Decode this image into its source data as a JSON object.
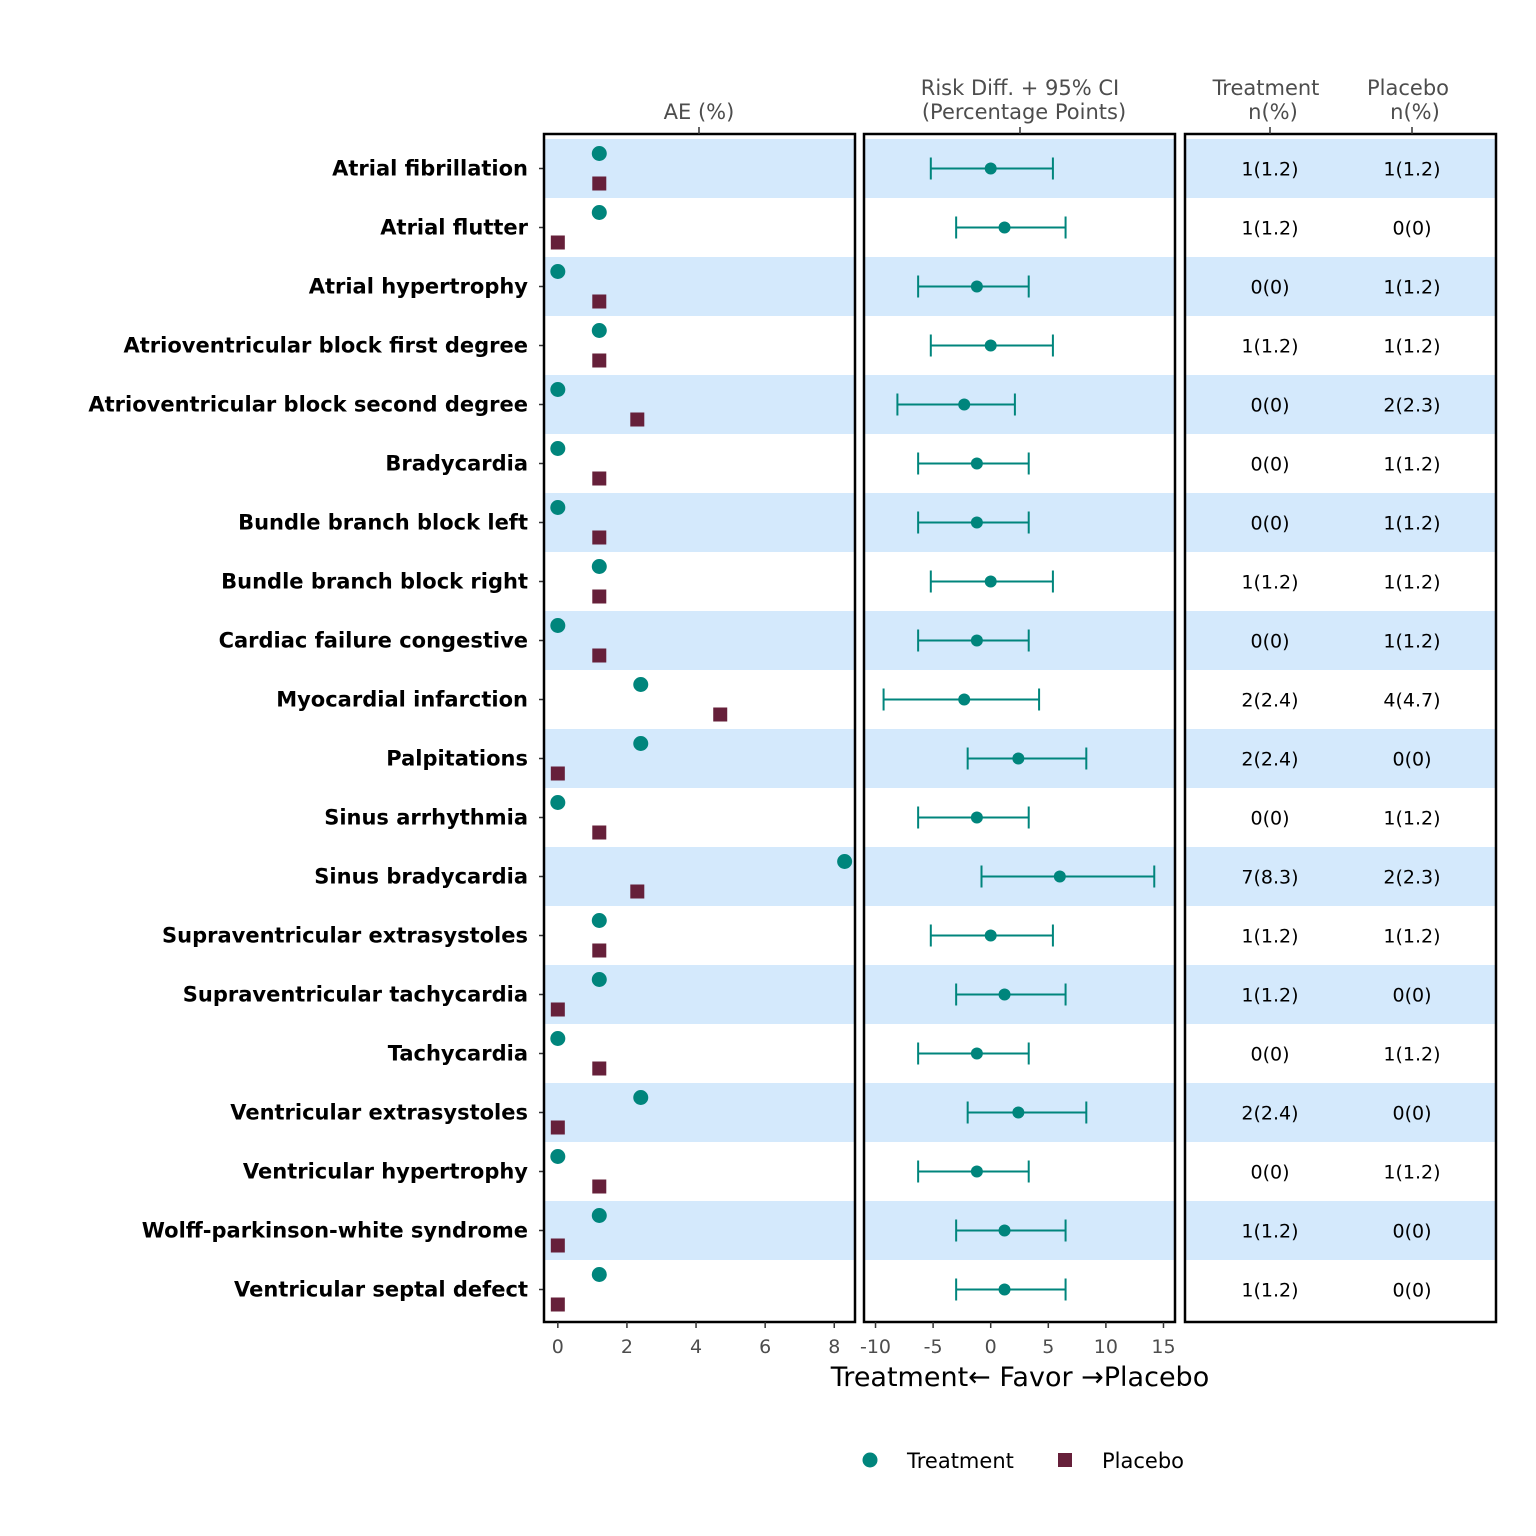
{
  "chart_data": {
    "type": "forest",
    "panels": {
      "ae": {
        "title": "AE (%)",
        "xlim": [
          -0.4,
          8.6
        ],
        "ticks": [
          0,
          2,
          4,
          6,
          8
        ]
      },
      "risk": {
        "title_line1": "Risk Diff. + 95% CI",
        "title_line2": "(Percentage Points)",
        "xlim": [
          -11,
          16
        ],
        "ticks": [
          -10,
          -5,
          0,
          5,
          10,
          15
        ],
        "tick_labels": [
          "-10",
          "-5",
          "0",
          "5",
          "10",
          "15"
        ]
      },
      "table": {
        "col1_line1": "Treatment",
        "col1_line2": "n(%)",
        "col2_line1": "Placebo",
        "col2_line2": "n(%)"
      }
    },
    "xlabel": "Treatment← Favor →Placebo",
    "legend": {
      "position": "bottom",
      "treatment": "Treatment",
      "placebo": "Placebo"
    },
    "colors": {
      "treatment": "#00857C",
      "placebo": "#66203A",
      "band": "#D4E9FC",
      "frame": "#000000"
    },
    "rows": [
      {
        "label": "Atrial fibrillation",
        "trt_pct": 1.2,
        "pbo_pct": 1.2,
        "rd": 0.0,
        "lo": -5.2,
        "hi": 5.4,
        "trt_n": "1(1.2)",
        "pbo_n": "1(1.2)"
      },
      {
        "label": "Atrial flutter",
        "trt_pct": 1.2,
        "pbo_pct": 0.0,
        "rd": 1.2,
        "lo": -3.0,
        "hi": 6.5,
        "trt_n": "1(1.2)",
        "pbo_n": "0(0)"
      },
      {
        "label": "Atrial hypertrophy",
        "trt_pct": 0.0,
        "pbo_pct": 1.2,
        "rd": -1.2,
        "lo": -6.3,
        "hi": 3.3,
        "trt_n": "0(0)",
        "pbo_n": "1(1.2)"
      },
      {
        "label": "Atrioventricular block first degree",
        "trt_pct": 1.2,
        "pbo_pct": 1.2,
        "rd": 0.0,
        "lo": -5.2,
        "hi": 5.4,
        "trt_n": "1(1.2)",
        "pbo_n": "1(1.2)"
      },
      {
        "label": "Atrioventricular block second degree",
        "trt_pct": 0.0,
        "pbo_pct": 2.3,
        "rd": -2.3,
        "lo": -8.1,
        "hi": 2.1,
        "trt_n": "0(0)",
        "pbo_n": "2(2.3)"
      },
      {
        "label": "Bradycardia",
        "trt_pct": 0.0,
        "pbo_pct": 1.2,
        "rd": -1.2,
        "lo": -6.3,
        "hi": 3.3,
        "trt_n": "0(0)",
        "pbo_n": "1(1.2)"
      },
      {
        "label": "Bundle branch block left",
        "trt_pct": 0.0,
        "pbo_pct": 1.2,
        "rd": -1.2,
        "lo": -6.3,
        "hi": 3.3,
        "trt_n": "0(0)",
        "pbo_n": "1(1.2)"
      },
      {
        "label": "Bundle branch block right",
        "trt_pct": 1.2,
        "pbo_pct": 1.2,
        "rd": 0.0,
        "lo": -5.2,
        "hi": 5.4,
        "trt_n": "1(1.2)",
        "pbo_n": "1(1.2)"
      },
      {
        "label": "Cardiac failure congestive",
        "trt_pct": 0.0,
        "pbo_pct": 1.2,
        "rd": -1.2,
        "lo": -6.3,
        "hi": 3.3,
        "trt_n": "0(0)",
        "pbo_n": "1(1.2)"
      },
      {
        "label": "Myocardial infarction",
        "trt_pct": 2.4,
        "pbo_pct": 4.7,
        "rd": -2.3,
        "lo": -9.3,
        "hi": 4.2,
        "trt_n": "2(2.4)",
        "pbo_n": "4(4.7)"
      },
      {
        "label": "Palpitations",
        "trt_pct": 2.4,
        "pbo_pct": 0.0,
        "rd": 2.4,
        "lo": -2.0,
        "hi": 8.3,
        "trt_n": "2(2.4)",
        "pbo_n": "0(0)"
      },
      {
        "label": "Sinus arrhythmia",
        "trt_pct": 0.0,
        "pbo_pct": 1.2,
        "rd": -1.2,
        "lo": -6.3,
        "hi": 3.3,
        "trt_n": "0(0)",
        "pbo_n": "1(1.2)"
      },
      {
        "label": "Sinus bradycardia",
        "trt_pct": 8.3,
        "pbo_pct": 2.3,
        "rd": 6.0,
        "lo": -0.8,
        "hi": 14.2,
        "trt_n": "7(8.3)",
        "pbo_n": "2(2.3)"
      },
      {
        "label": "Supraventricular extrasystoles",
        "trt_pct": 1.2,
        "pbo_pct": 1.2,
        "rd": 0.0,
        "lo": -5.2,
        "hi": 5.4,
        "trt_n": "1(1.2)",
        "pbo_n": "1(1.2)"
      },
      {
        "label": "Supraventricular tachycardia",
        "trt_pct": 1.2,
        "pbo_pct": 0.0,
        "rd": 1.2,
        "lo": -3.0,
        "hi": 6.5,
        "trt_n": "1(1.2)",
        "pbo_n": "0(0)"
      },
      {
        "label": "Tachycardia",
        "trt_pct": 0.0,
        "pbo_pct": 1.2,
        "rd": -1.2,
        "lo": -6.3,
        "hi": 3.3,
        "trt_n": "0(0)",
        "pbo_n": "1(1.2)"
      },
      {
        "label": "Ventricular extrasystoles",
        "trt_pct": 2.4,
        "pbo_pct": 0.0,
        "rd": 2.4,
        "lo": -2.0,
        "hi": 8.3,
        "trt_n": "2(2.4)",
        "pbo_n": "0(0)"
      },
      {
        "label": "Ventricular hypertrophy",
        "trt_pct": 0.0,
        "pbo_pct": 1.2,
        "rd": -1.2,
        "lo": -6.3,
        "hi": 3.3,
        "trt_n": "0(0)",
        "pbo_n": "1(1.2)"
      },
      {
        "label": "Wolff-parkinson-white syndrome",
        "trt_pct": 1.2,
        "pbo_pct": 0.0,
        "rd": 1.2,
        "lo": -3.0,
        "hi": 6.5,
        "trt_n": "1(1.2)",
        "pbo_n": "0(0)"
      },
      {
        "label": "Ventricular septal defect",
        "trt_pct": 1.2,
        "pbo_pct": 0.0,
        "rd": 1.2,
        "lo": -3.0,
        "hi": 6.5,
        "trt_n": "1(1.2)",
        "pbo_n": "0(0)"
      }
    ]
  }
}
